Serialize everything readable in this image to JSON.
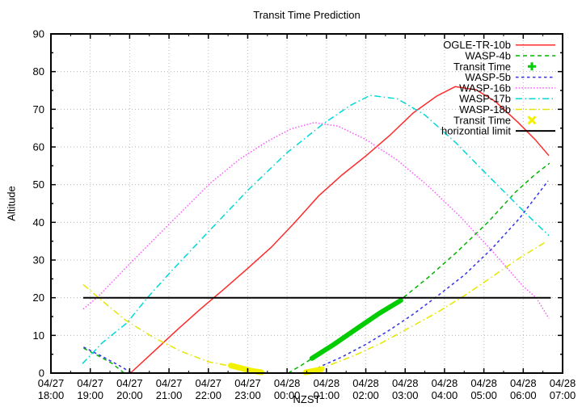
{
  "title": "Transit Time Prediction",
  "x_axis_label": "NZST",
  "y_axis_label": "Altitude",
  "chart_data": {
    "type": "line",
    "title": "Transit Time Prediction",
    "xlabel": "NZST",
    "ylabel": "Altitude",
    "ylim": [
      0,
      90
    ],
    "x_start": "04/27 18:00",
    "x_end": "04/28 07:00",
    "x_span_hours": 13,
    "grid": true,
    "legend_position": "top-right-inside",
    "y_ticks": [
      0,
      10,
      20,
      30,
      40,
      50,
      60,
      70,
      80,
      90
    ],
    "x_ticks": [
      {
        "date": "04/27",
        "time": "18:00"
      },
      {
        "date": "04/27",
        "time": "19:00"
      },
      {
        "date": "04/27",
        "time": "20:00"
      },
      {
        "date": "04/27",
        "time": "21:00"
      },
      {
        "date": "04/27",
        "time": "22:00"
      },
      {
        "date": "04/27",
        "time": "23:00"
      },
      {
        "date": "04/28",
        "time": "00:00"
      },
      {
        "date": "04/28",
        "time": "01:00"
      },
      {
        "date": "04/28",
        "time": "02:00"
      },
      {
        "date": "04/28",
        "time": "03:00"
      },
      {
        "date": "04/28",
        "time": "04:00"
      },
      {
        "date": "04/28",
        "time": "05:00"
      },
      {
        "date": "04/28",
        "time": "06:00"
      },
      {
        "date": "04/28",
        "time": "07:00"
      }
    ],
    "series": [
      {
        "name": "OGLE-TR-10b",
        "color": "#ff2a2a",
        "dash": "solid",
        "width": 1.5,
        "segments": [
          [
            [
              2.02,
              0
            ],
            [
              2.6,
              5.6
            ],
            [
              3.2,
              11.4
            ],
            [
              3.8,
              17
            ],
            [
              4.4,
              22.3
            ],
            [
              5.0,
              27.8
            ],
            [
              5.6,
              33.4
            ],
            [
              6.2,
              40
            ],
            [
              6.8,
              47
            ],
            [
              7.4,
              52.6
            ],
            [
              8.0,
              57.6
            ],
            [
              8.6,
              63
            ],
            [
              9.2,
              69
            ],
            [
              9.8,
              73.5
            ],
            [
              10.27,
              76
            ],
            [
              10.8,
              75.2
            ],
            [
              11.3,
              72
            ],
            [
              11.87,
              66.5
            ],
            [
              12.3,
              62
            ],
            [
              12.65,
              57.7
            ]
          ]
        ]
      },
      {
        "name": "WASP-4b",
        "color": "#00b400",
        "dash": "dashed",
        "width": 1.5,
        "segments": [
          [
            [
              0.83,
              6.6
            ],
            [
              1.2,
              4.6
            ],
            [
              1.55,
              2.6
            ],
            [
              1.86,
              0
            ]
          ],
          [
            [
              6.03,
              0
            ],
            [
              6.35,
              2
            ],
            [
              6.8,
              5
            ],
            [
              7.3,
              8.4
            ],
            [
              7.9,
              12.7
            ],
            [
              8.5,
              17
            ],
            [
              8.95,
              20
            ],
            [
              9.6,
              25.5
            ],
            [
              10.3,
              32
            ],
            [
              11.1,
              40
            ],
            [
              11.8,
              48
            ],
            [
              12.3,
              52.7
            ],
            [
              12.67,
              55.7
            ]
          ]
        ]
      },
      {
        "name": "Transit Time",
        "color": "#00cc00",
        "dash": "solid",
        "width": 6,
        "marker": "plus",
        "segments": [
          [
            [
              6.63,
              3.9
            ],
            [
              7.2,
              7.7
            ],
            [
              7.8,
              12
            ],
            [
              8.35,
              15.9
            ],
            [
              8.89,
              19.3
            ]
          ]
        ]
      },
      {
        "name": "WASP-5b",
        "color": "#3030f0",
        "dash": "dashed2",
        "width": 1.5,
        "segments": [
          [
            [
              0.83,
              6.9
            ],
            [
              1.25,
              4.7
            ],
            [
              1.7,
              2.2
            ],
            [
              2.06,
              0
            ]
          ],
          [
            [
              6.52,
              0
            ],
            [
              6.9,
              2
            ],
            [
              7.4,
              4.3
            ],
            [
              8.0,
              7.6
            ],
            [
              8.6,
              11.4
            ],
            [
              9.2,
              15.6
            ],
            [
              9.8,
              20.3
            ],
            [
              10.5,
              26
            ],
            [
              11.2,
              33
            ],
            [
              11.9,
              41
            ],
            [
              12.63,
              51
            ]
          ]
        ]
      },
      {
        "name": "WASP-16b",
        "color": "#ff55ff",
        "dash": "dotted",
        "width": 1.5,
        "segments": [
          [
            [
              0.82,
              17
            ],
            [
              1.17,
              20
            ],
            [
              2.0,
              29
            ],
            [
              3.0,
              39.5
            ],
            [
              4.05,
              50.4
            ],
            [
              4.8,
              56.8
            ],
            [
              5.5,
              61.5
            ],
            [
              6.1,
              64.8
            ],
            [
              6.7,
              66.5
            ],
            [
              7.3,
              65.5
            ],
            [
              8.0,
              62
            ],
            [
              8.8,
              56.5
            ],
            [
              9.6,
              49.5
            ],
            [
              10.4,
              41.5
            ],
            [
              11.2,
              32.5
            ],
            [
              12.0,
              23
            ],
            [
              12.33,
              20
            ],
            [
              12.65,
              14.5
            ]
          ]
        ]
      },
      {
        "name": "WASP-17b",
        "color": "#00d8d8",
        "dash": "dashdot",
        "width": 1.5,
        "segments": [
          [
            [
              0.8,
              2.5
            ],
            [
              1.3,
              8
            ],
            [
              1.93,
              13.3
            ],
            [
              2.45,
              20
            ],
            [
              3.1,
              27.5
            ],
            [
              4.0,
              37.5
            ],
            [
              5.0,
              48.5
            ],
            [
              6.0,
              58.5
            ],
            [
              6.9,
              66
            ],
            [
              7.6,
              71
            ],
            [
              8.11,
              73.7
            ],
            [
              8.8,
              72.8
            ],
            [
              9.5,
              68.5
            ],
            [
              10.3,
              61
            ],
            [
              11.0,
              53.5
            ],
            [
              11.67,
              46.5
            ],
            [
              12.2,
              41
            ],
            [
              12.65,
              36.5
            ]
          ]
        ]
      },
      {
        "name": "WASP-18b",
        "color": "#e6e600",
        "dash": "dashdot",
        "width": 1.5,
        "segments": [
          [
            [
              0.82,
              23.5
            ],
            [
              1.21,
              20
            ],
            [
              1.9,
              14
            ],
            [
              2.6,
              9.5
            ],
            [
              3.3,
              5.8
            ],
            [
              4.0,
              3.0
            ],
            [
              4.6,
              1.8
            ],
            [
              5.05,
              0.7
            ],
            [
              5.35,
              0
            ]
          ],
          [
            [
              6.47,
              0
            ],
            [
              7.0,
              1.8
            ],
            [
              7.7,
              4.6
            ],
            [
              8.4,
              8
            ],
            [
              9.1,
              12
            ],
            [
              9.8,
              16
            ],
            [
              10.5,
              20.5
            ],
            [
              11.2,
              25.5
            ],
            [
              11.9,
              30.5
            ],
            [
              12.6,
              35
            ]
          ]
        ]
      },
      {
        "name": "Transit Time",
        "color": "#f2f200",
        "dash": "solid",
        "width": 7,
        "marker": "x",
        "segments": [
          [
            [
              4.57,
              2.0
            ],
            [
              5.05,
              0.7
            ],
            [
              5.35,
              0.2
            ]
          ],
          [
            [
              6.47,
              0.2
            ],
            [
              6.87,
              1.0
            ]
          ]
        ]
      },
      {
        "name": "horizontial limit",
        "color": "#000000",
        "dash": "solid",
        "width": 2,
        "segments": [
          [
            [
              0.82,
              20
            ],
            [
              12.7,
              20
            ]
          ]
        ]
      }
    ]
  }
}
